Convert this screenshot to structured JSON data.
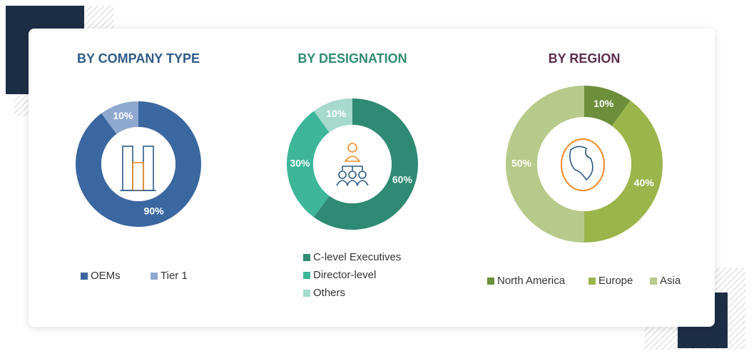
{
  "chart_data": [
    {
      "type": "donut",
      "title": "BY COMPANY TYPE",
      "title_color": "#2d5a86",
      "categories": [
        "OEMs",
        "Tier 1"
      ],
      "values": [
        90,
        10
      ],
      "value_labels": [
        "90%",
        "10%"
      ],
      "colors": [
        "#3b67a1",
        "#8ea8cf"
      ]
    },
    {
      "type": "donut",
      "title": "BY DESIGNATION",
      "title_color": "#2f8c70",
      "categories": [
        "C-level Executives",
        "Director-level",
        "Others"
      ],
      "values": [
        60,
        30,
        10
      ],
      "value_labels": [
        "60%",
        "30%",
        "10%"
      ],
      "colors": [
        "#2e8a73",
        "#3db698",
        "#a7d9cc"
      ]
    },
    {
      "type": "donut",
      "title": "BY REGION",
      "title_color": "#5b2d4b",
      "categories": [
        "North America",
        "Europe",
        "Asia"
      ],
      "values": [
        10,
        40,
        50
      ],
      "value_labels": [
        "10%",
        "40%",
        "50%"
      ],
      "colors": [
        "#6d8e3a",
        "#9bb54b",
        "#b8ca8b"
      ]
    }
  ]
}
